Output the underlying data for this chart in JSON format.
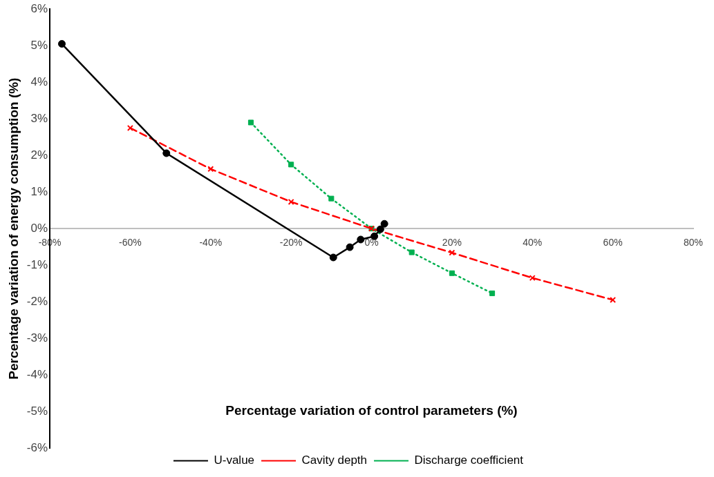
{
  "chart_data": {
    "type": "line",
    "xlabel": "Percentage variation of control parameters (%)",
    "ylabel": "Percentage variation of energy consumption (%)",
    "xlim": [
      -80,
      80
    ],
    "ylim": [
      -6,
      6
    ],
    "xticks": [
      {
        "value": -80,
        "label": "-80%"
      },
      {
        "value": -60,
        "label": "-60%"
      },
      {
        "value": -40,
        "label": "-40%"
      },
      {
        "value": -20,
        "label": "-20%"
      },
      {
        "value": 0,
        "label": "0%"
      },
      {
        "value": 20,
        "label": "20%"
      },
      {
        "value": 40,
        "label": "40%"
      },
      {
        "value": 60,
        "label": "60%"
      },
      {
        "value": 80,
        "label": "80%"
      }
    ],
    "yticks": [
      {
        "value": -6,
        "label": "-6%"
      },
      {
        "value": -5,
        "label": "-5%"
      },
      {
        "value": -4,
        "label": "-4%"
      },
      {
        "value": -3,
        "label": "-3%"
      },
      {
        "value": -2,
        "label": "-2%"
      },
      {
        "value": -1,
        "label": "-1%"
      },
      {
        "value": 0,
        "label": "0%"
      },
      {
        "value": 1,
        "label": "1%"
      },
      {
        "value": 2,
        "label": "2%"
      },
      {
        "value": 3,
        "label": "3%"
      },
      {
        "value": 4,
        "label": "4%"
      },
      {
        "value": 5,
        "label": "5%"
      },
      {
        "value": 6,
        "label": "6%"
      }
    ],
    "grid": false,
    "legend": "bottom",
    "series": [
      {
        "name": "U-value",
        "color": "#000000",
        "marker": "circle",
        "line_style": "solid",
        "x": [
          -77,
          -51,
          -9.5,
          -5.4,
          -2.7,
          0.7,
          2.2,
          3.2
        ],
        "values": [
          5.05,
          2.06,
          -0.79,
          -0.51,
          -0.3,
          -0.21,
          -0.02,
          0.13
        ]
      },
      {
        "name": "Cavity depth",
        "color": "#ff0000",
        "marker": "cross",
        "line_style": "dashed",
        "x": [
          -60,
          -40,
          -20,
          0,
          20,
          40,
          60
        ],
        "values": [
          2.75,
          1.63,
          0.73,
          0,
          -0.66,
          -1.35,
          -1.95
        ]
      },
      {
        "name": "Discharge coefficient",
        "color": "#00b050",
        "marker": "square",
        "line_style": "dotted",
        "x": [
          -30,
          -20,
          -10,
          0,
          10,
          20,
          30
        ],
        "values": [
          2.9,
          1.75,
          0.82,
          0,
          -0.65,
          -1.22,
          -1.77
        ]
      }
    ]
  }
}
